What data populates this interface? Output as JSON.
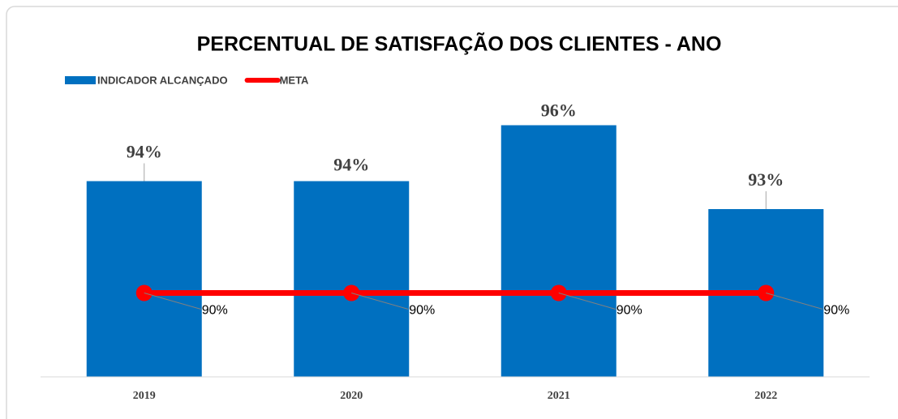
{
  "chart_data": {
    "type": "bar",
    "title": "PERCENTUAL DE SATISFAÇÃO DOS CLIENTES - ANO",
    "categories": [
      "2019",
      "2020",
      "2021",
      "2022"
    ],
    "series": [
      {
        "name": "INDICADOR ALCANÇADO",
        "type": "bar",
        "color": "#0070c0",
        "values": [
          94,
          94,
          96,
          93
        ],
        "value_labels": [
          "94%",
          "94%",
          "96%",
          "93%"
        ]
      },
      {
        "name": "META",
        "type": "line",
        "color": "#ff0000",
        "values": [
          90,
          90,
          90,
          90
        ],
        "value_labels": [
          "90%",
          "90%",
          "90%",
          "90%"
        ]
      }
    ],
    "ylim": [
      87,
      98
    ],
    "legend": "top-left"
  }
}
